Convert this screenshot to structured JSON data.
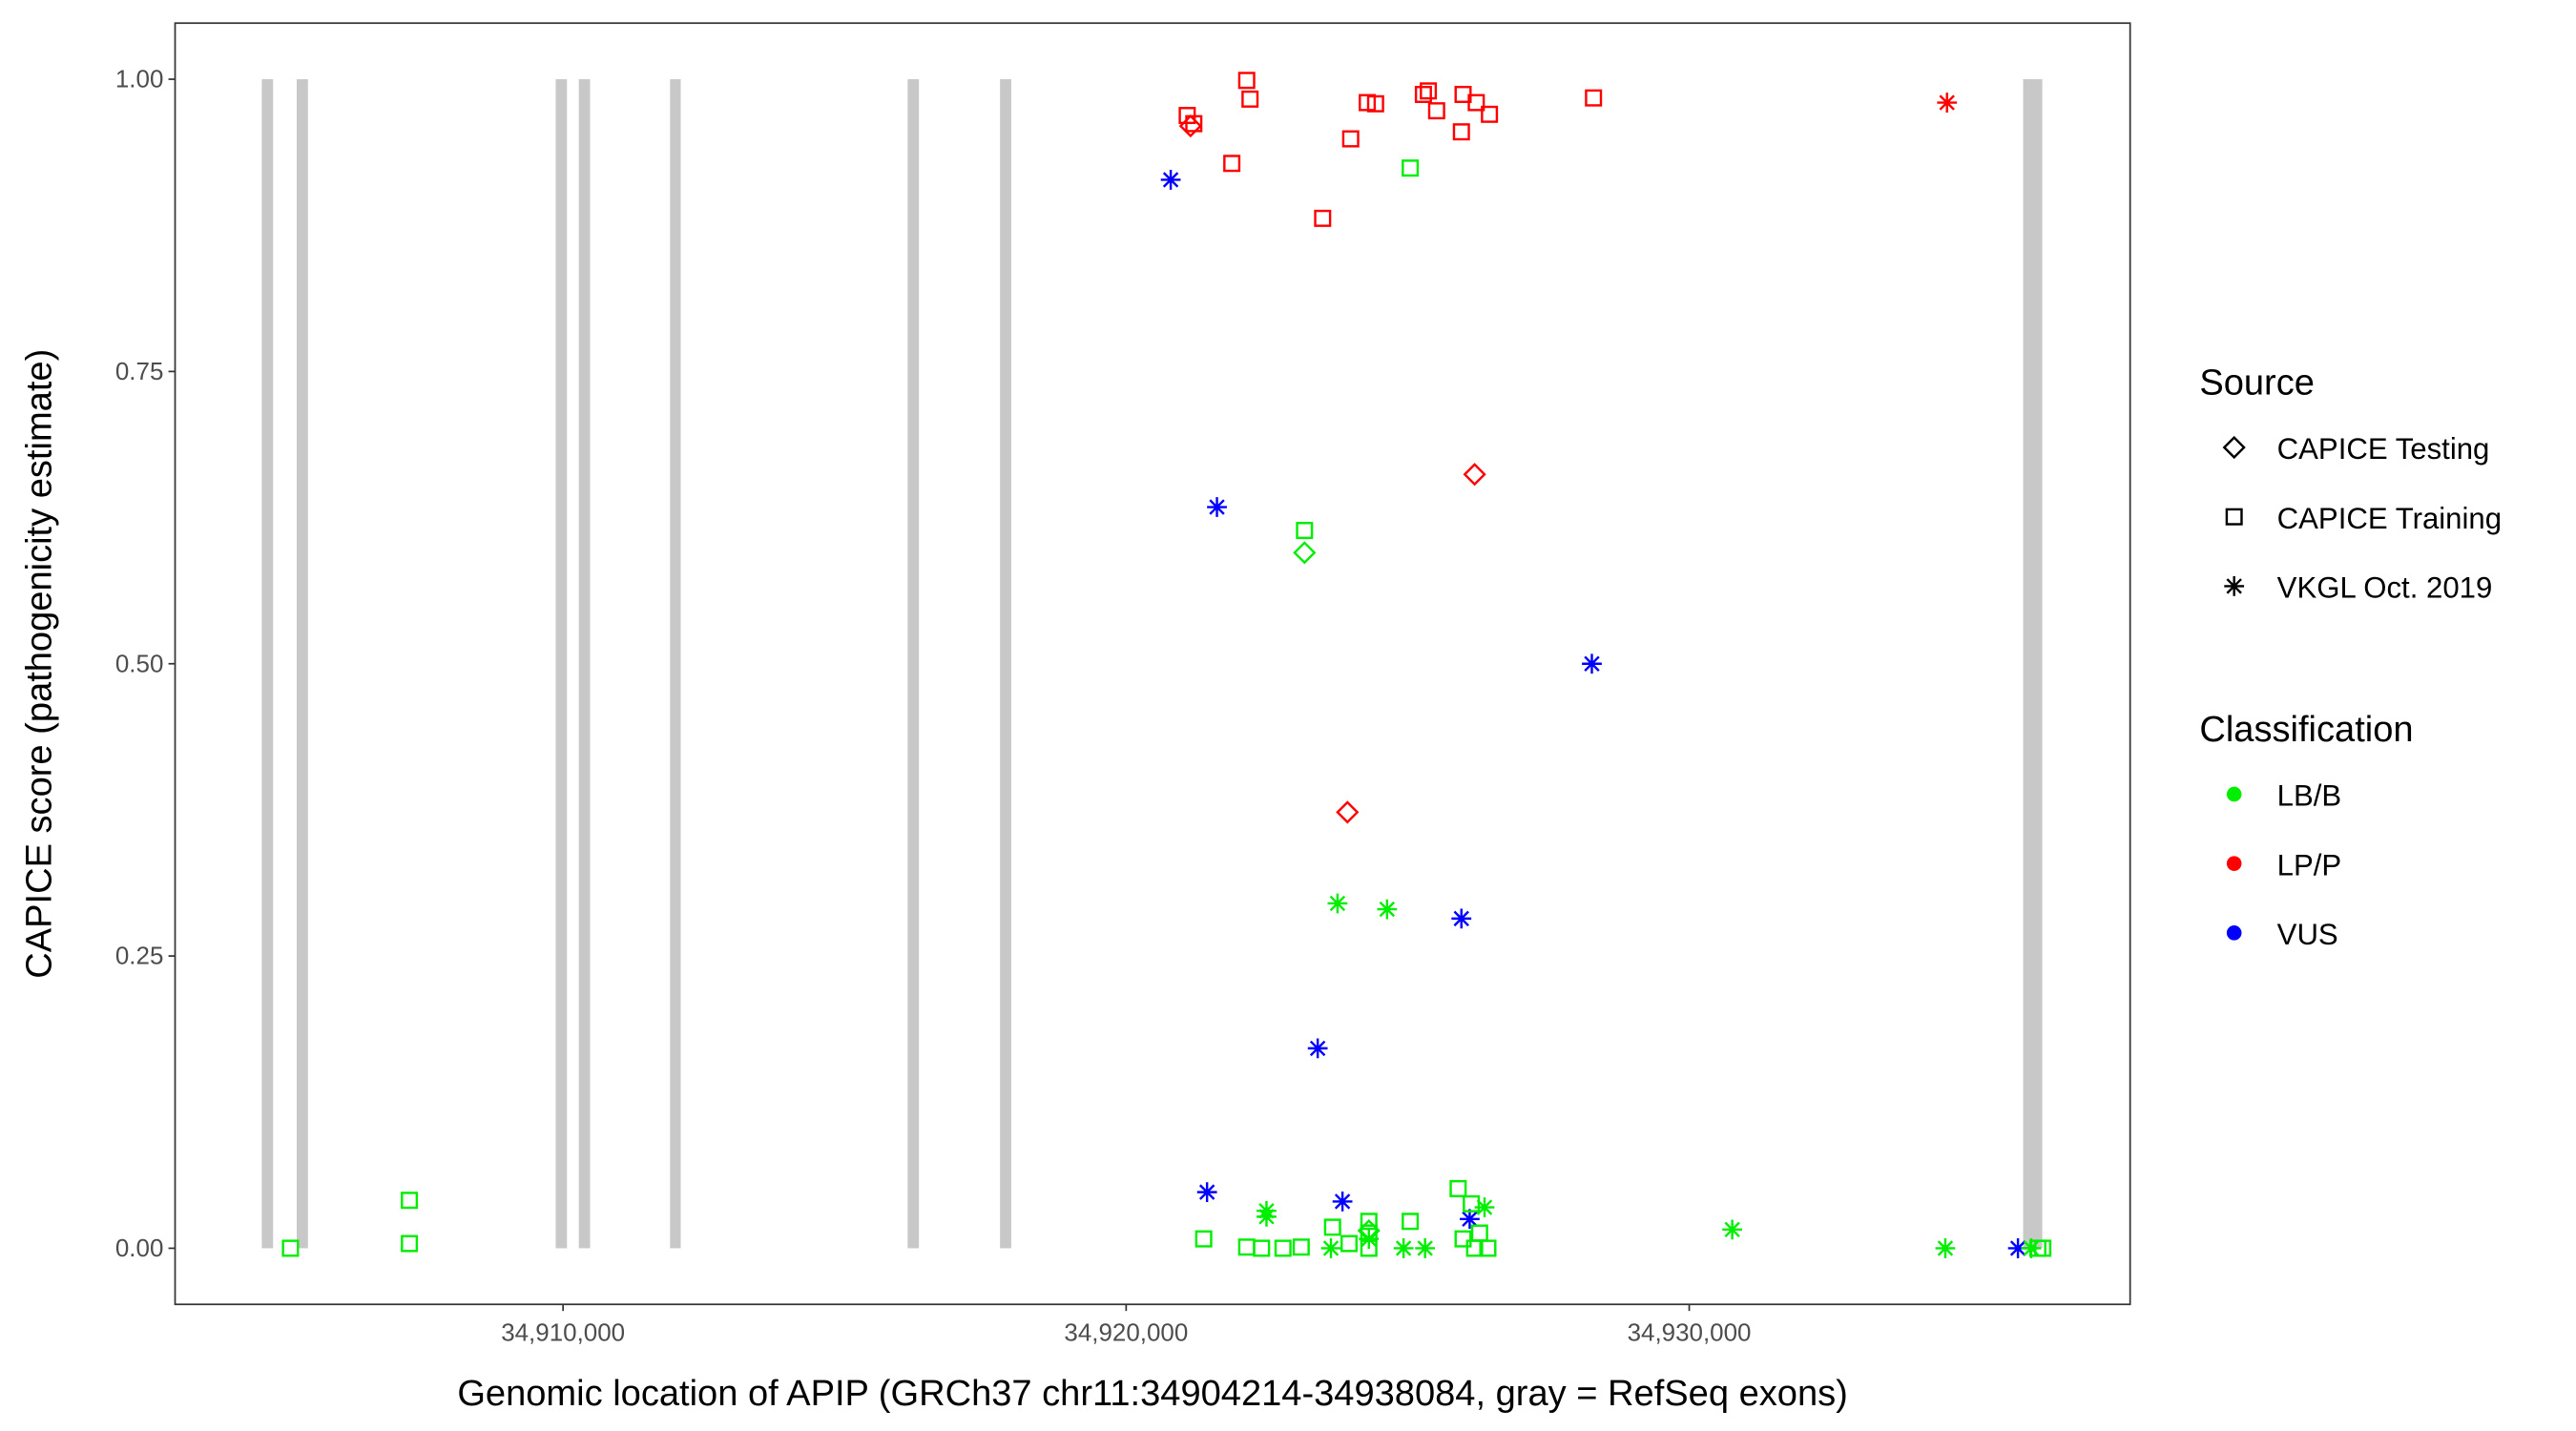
{
  "chart_data": {
    "type": "scatter",
    "title": "",
    "xlabel": "Genomic location of APIP (GRCh37 chr11:34904214-34938084, gray = RefSeq exons)",
    "ylabel": "CAPICE score (pathogenicity estimate)",
    "xlim": [
      34903110,
      34937830
    ],
    "ylim": [
      -0.048,
      1.048
    ],
    "x_ticks": [
      34910000,
      34920000,
      34930000
    ],
    "x_tick_labels": [
      "34,910,000",
      "34,920,000",
      "34,930,000"
    ],
    "y_ticks": [
      0,
      0.25,
      0.5,
      0.75,
      1.0
    ],
    "y_tick_labels": [
      "0.00",
      "0.25",
      "0.50",
      "0.75",
      "1.00"
    ],
    "grid": false,
    "exon_color": "#c8c8c8",
    "exons": [
      [
        34904650,
        34904850
      ],
      [
        34905270,
        34905470
      ],
      [
        34909870,
        34910070
      ],
      [
        34910280,
        34910480
      ],
      [
        34911900,
        34912090
      ],
      [
        34916120,
        34916320
      ],
      [
        34917760,
        34917960
      ],
      [
        34935930,
        34936270
      ]
    ],
    "legend": {
      "placement": "right",
      "source_title": "Source",
      "source_entries": [
        {
          "label": "CAPICE Testing",
          "shape": "diamond"
        },
        {
          "label": "CAPICE Training",
          "shape": "square"
        },
        {
          "label": "VKGL Oct. 2019",
          "shape": "star"
        }
      ],
      "class_title": "Classification",
      "class_entries": [
        {
          "label": "LB/B",
          "color": "#00ee00"
        },
        {
          "label": "LP/P",
          "color": "#ff0000"
        },
        {
          "label": "VUS",
          "color": "#0000ff"
        }
      ]
    },
    "points": [
      {
        "x": 34921085,
        "y": 0.969,
        "src": "square",
        "cls": "LP/P"
      },
      {
        "x": 34921202,
        "y": 0.962,
        "src": "square",
        "cls": "LP/P"
      },
      {
        "x": 34922141,
        "y": 0.999,
        "src": "square",
        "cls": "LP/P"
      },
      {
        "x": 34922200,
        "y": 0.983,
        "src": "square",
        "cls": "LP/P"
      },
      {
        "x": 34921877,
        "y": 0.928,
        "src": "square",
        "cls": "LP/P"
      },
      {
        "x": 34923490,
        "y": 0.881,
        "src": "square",
        "cls": "LP/P"
      },
      {
        "x": 34923988,
        "y": 0.949,
        "src": "square",
        "cls": "LP/P"
      },
      {
        "x": 34924282,
        "y": 0.98,
        "src": "square",
        "cls": "LP/P"
      },
      {
        "x": 34924430,
        "y": 0.979,
        "src": "square",
        "cls": "LP/P"
      },
      {
        "x": 34925279,
        "y": 0.987,
        "src": "square",
        "cls": "LP/P"
      },
      {
        "x": 34925367,
        "y": 0.99,
        "src": "square",
        "cls": "LP/P"
      },
      {
        "x": 34925514,
        "y": 0.973,
        "src": "square",
        "cls": "LP/P"
      },
      {
        "x": 34925984,
        "y": 0.987,
        "src": "square",
        "cls": "LP/P"
      },
      {
        "x": 34925954,
        "y": 0.955,
        "src": "square",
        "cls": "LP/P"
      },
      {
        "x": 34926218,
        "y": 0.98,
        "src": "square",
        "cls": "LP/P"
      },
      {
        "x": 34926452,
        "y": 0.97,
        "src": "square",
        "cls": "LP/P"
      },
      {
        "x": 34928300,
        "y": 0.984,
        "src": "square",
        "cls": "LP/P"
      },
      {
        "x": 34921144,
        "y": 0.96,
        "src": "diamond",
        "cls": "LP/P"
      },
      {
        "x": 34926189,
        "y": 0.662,
        "src": "diamond",
        "cls": "LP/P"
      },
      {
        "x": 34923930,
        "y": 0.373,
        "src": "diamond",
        "cls": "LP/P"
      },
      {
        "x": 34934578,
        "y": 0.98,
        "src": "star",
        "cls": "LP/P"
      },
      {
        "x": 34920792,
        "y": 0.914,
        "src": "star",
        "cls": "VUS"
      },
      {
        "x": 34921613,
        "y": 0.634,
        "src": "star",
        "cls": "VUS"
      },
      {
        "x": 34928271,
        "y": 0.5,
        "src": "star",
        "cls": "VUS"
      },
      {
        "x": 34925954,
        "y": 0.282,
        "src": "star",
        "cls": "VUS"
      },
      {
        "x": 34923402,
        "y": 0.171,
        "src": "star",
        "cls": "VUS"
      },
      {
        "x": 34921437,
        "y": 0.048,
        "src": "star",
        "cls": "VUS"
      },
      {
        "x": 34923842,
        "y": 0.04,
        "src": "star",
        "cls": "VUS"
      },
      {
        "x": 34926101,
        "y": 0.025,
        "src": "star",
        "cls": "VUS"
      },
      {
        "x": 34935838,
        "y": 0.0,
        "src": "star",
        "cls": "VUS"
      },
      {
        "x": 34925045,
        "y": 0.924,
        "src": "square",
        "cls": "LB/B"
      },
      {
        "x": 34923168,
        "y": 0.614,
        "src": "square",
        "cls": "LB/B"
      },
      {
        "x": 34905159,
        "y": 0.0,
        "src": "square",
        "cls": "LB/B"
      },
      {
        "x": 34907271,
        "y": 0.041,
        "src": "square",
        "cls": "LB/B"
      },
      {
        "x": 34907271,
        "y": 0.004,
        "src": "square",
        "cls": "LB/B"
      },
      {
        "x": 34921378,
        "y": 0.008,
        "src": "square",
        "cls": "LB/B"
      },
      {
        "x": 34922141,
        "y": 0.001,
        "src": "square",
        "cls": "LB/B"
      },
      {
        "x": 34922405,
        "y": 0.0,
        "src": "square",
        "cls": "LB/B"
      },
      {
        "x": 34922786,
        "y": 0.0,
        "src": "square",
        "cls": "LB/B"
      },
      {
        "x": 34923109,
        "y": 0.001,
        "src": "square",
        "cls": "LB/B"
      },
      {
        "x": 34923666,
        "y": 0.018,
        "src": "square",
        "cls": "LB/B"
      },
      {
        "x": 34923959,
        "y": 0.004,
        "src": "square",
        "cls": "LB/B"
      },
      {
        "x": 34924311,
        "y": 0.023,
        "src": "square",
        "cls": "LB/B"
      },
      {
        "x": 34924311,
        "y": 0.013,
        "src": "square",
        "cls": "LB/B"
      },
      {
        "x": 34924311,
        "y": 0.0,
        "src": "square",
        "cls": "LB/B"
      },
      {
        "x": 34925045,
        "y": 0.023,
        "src": "square",
        "cls": "LB/B"
      },
      {
        "x": 34925896,
        "y": 0.051,
        "src": "square",
        "cls": "LB/B"
      },
      {
        "x": 34926130,
        "y": 0.038,
        "src": "square",
        "cls": "LB/B"
      },
      {
        "x": 34925984,
        "y": 0.008,
        "src": "square",
        "cls": "LB/B"
      },
      {
        "x": 34926277,
        "y": 0.013,
        "src": "square",
        "cls": "LB/B"
      },
      {
        "x": 34926189,
        "y": 0.0,
        "src": "square",
        "cls": "LB/B"
      },
      {
        "x": 34926424,
        "y": 0.0,
        "src": "square",
        "cls": "LB/B"
      },
      {
        "x": 34936191,
        "y": 0.0,
        "src": "square",
        "cls": "LB/B"
      },
      {
        "x": 34936279,
        "y": 0.0,
        "src": "square",
        "cls": "LB/B"
      },
      {
        "x": 34923168,
        "y": 0.595,
        "src": "diamond",
        "cls": "LB/B"
      },
      {
        "x": 34924311,
        "y": 0.015,
        "src": "diamond",
        "cls": "LB/B"
      },
      {
        "x": 34923754,
        "y": 0.295,
        "src": "star",
        "cls": "LB/B"
      },
      {
        "x": 34924634,
        "y": 0.29,
        "src": "star",
        "cls": "LB/B"
      },
      {
        "x": 34922493,
        "y": 0.032,
        "src": "star",
        "cls": "LB/B"
      },
      {
        "x": 34922493,
        "y": 0.027,
        "src": "star",
        "cls": "LB/B"
      },
      {
        "x": 34923637,
        "y": 0.0,
        "src": "star",
        "cls": "LB/B"
      },
      {
        "x": 34924311,
        "y": 0.008,
        "src": "star",
        "cls": "LB/B"
      },
      {
        "x": 34924927,
        "y": 0.0,
        "src": "star",
        "cls": "LB/B"
      },
      {
        "x": 34925309,
        "y": 0.0,
        "src": "star",
        "cls": "LB/B"
      },
      {
        "x": 34926365,
        "y": 0.035,
        "src": "star",
        "cls": "LB/B"
      },
      {
        "x": 34930764,
        "y": 0.016,
        "src": "star",
        "cls": "LB/B"
      },
      {
        "x": 34934548,
        "y": 0.0,
        "src": "star",
        "cls": "LB/B"
      },
      {
        "x": 34936073,
        "y": 0.0,
        "src": "star",
        "cls": "LB/B"
      }
    ]
  }
}
